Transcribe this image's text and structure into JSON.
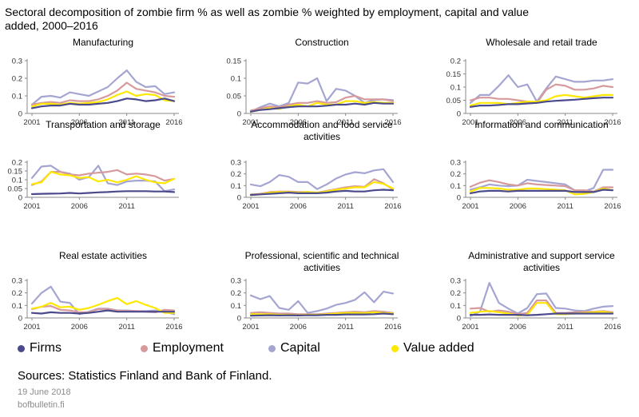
{
  "title": "Sectoral decomposition of zombie firm % as well as zombie % weighted by employment, capital and value added, 2000–2016",
  "source": "Sources: Statistics Finland and Bank of Finland.",
  "date": "19 June 2018",
  "site": "bofbulletin.fi",
  "legend": [
    {
      "name": "Firms",
      "color": "#4a4a8c"
    },
    {
      "name": "Employment",
      "color": "#d69a9c"
    },
    {
      "name": "Capital",
      "color": "#a5a5d2"
    },
    {
      "name": "Value added",
      "color": "#ffe800"
    }
  ],
  "chart_data": [
    {
      "type": "line",
      "title": [
        "Manufacturing"
      ],
      "x": [
        2001,
        2002,
        2003,
        2004,
        2005,
        2006,
        2007,
        2008,
        2009,
        2010,
        2011,
        2012,
        2013,
        2014,
        2015,
        2016
      ],
      "xticks": [
        2001,
        2006,
        2011,
        2016
      ],
      "yticks": [
        "0",
        "0.1",
        "0.2",
        "0.3"
      ],
      "ylim": [
        0,
        0.3
      ],
      "series": [
        {
          "name": "Firms",
          "values": [
            0.03,
            0.04,
            0.045,
            0.045,
            0.055,
            0.05,
            0.05,
            0.055,
            0.06,
            0.07,
            0.085,
            0.08,
            0.07,
            0.075,
            0.085,
            0.07
          ]
        },
        {
          "name": "Employment",
          "values": [
            0.05,
            0.06,
            0.065,
            0.06,
            0.075,
            0.07,
            0.07,
            0.08,
            0.1,
            0.13,
            0.175,
            0.14,
            0.13,
            0.12,
            0.1,
            0.095
          ]
        },
        {
          "name": "Capital",
          "values": [
            0.05,
            0.095,
            0.1,
            0.09,
            0.12,
            0.11,
            0.1,
            0.125,
            0.15,
            0.2,
            0.245,
            0.18,
            0.15,
            0.155,
            0.11,
            0.12
          ]
        },
        {
          "name": "Value added",
          "values": [
            0.04,
            0.055,
            0.055,
            0.05,
            0.06,
            0.055,
            0.06,
            0.065,
            0.08,
            0.105,
            0.125,
            0.1,
            0.11,
            0.105,
            0.075,
            0.07
          ]
        }
      ]
    },
    {
      "type": "line",
      "title": [
        "Construction"
      ],
      "x": [
        2001,
        2002,
        2003,
        2004,
        2005,
        2006,
        2007,
        2008,
        2009,
        2010,
        2011,
        2012,
        2013,
        2014,
        2015,
        2016
      ],
      "xticks": [
        2001,
        2006,
        2011,
        2016
      ],
      "yticks": [
        "0",
        "0.05",
        "0.1",
        "0.15"
      ],
      "ylim": [
        0,
        0.15
      ],
      "series": [
        {
          "name": "Firms",
          "values": [
            0.005,
            0.01,
            0.012,
            0.015,
            0.018,
            0.02,
            0.02,
            0.02,
            0.022,
            0.025,
            0.025,
            0.028,
            0.025,
            0.03,
            0.028,
            0.028
          ]
        },
        {
          "name": "Employment",
          "values": [
            0.008,
            0.015,
            0.02,
            0.018,
            0.025,
            0.03,
            0.03,
            0.035,
            0.03,
            0.032,
            0.045,
            0.05,
            0.04,
            0.04,
            0.04,
            0.035
          ]
        },
        {
          "name": "Capital",
          "values": [
            0.005,
            0.018,
            0.028,
            0.02,
            0.03,
            0.088,
            0.085,
            0.1,
            0.035,
            0.07,
            0.065,
            0.05,
            0.03,
            0.038,
            0.04,
            0.038
          ]
        },
        {
          "name": "Value added",
          "values": [
            0.005,
            0.01,
            0.015,
            0.013,
            0.02,
            0.025,
            0.02,
            0.03,
            0.025,
            0.025,
            0.035,
            0.035,
            0.03,
            0.032,
            0.03,
            0.03
          ]
        }
      ]
    },
    {
      "type": "line",
      "title": [
        "Wholesale and retail trade"
      ],
      "x": [
        2001,
        2002,
        2003,
        2004,
        2005,
        2006,
        2007,
        2008,
        2009,
        2010,
        2011,
        2012,
        2013,
        2014,
        2015,
        2016
      ],
      "xticks": [
        2001,
        2006,
        2011,
        2016
      ],
      "yticks": [
        "0",
        "0.05",
        "0.1",
        "0.15",
        "0.2"
      ],
      "ylim": [
        0,
        0.2
      ],
      "series": [
        {
          "name": "Firms",
          "values": [
            0.025,
            0.03,
            0.03,
            0.032,
            0.035,
            0.035,
            0.038,
            0.04,
            0.045,
            0.048,
            0.05,
            0.052,
            0.055,
            0.058,
            0.06,
            0.06
          ]
        },
        {
          "name": "Employment",
          "values": [
            0.05,
            0.06,
            0.06,
            0.055,
            0.055,
            0.05,
            0.045,
            0.04,
            0.09,
            0.11,
            0.105,
            0.09,
            0.09,
            0.095,
            0.105,
            0.1
          ]
        },
        {
          "name": "Capital",
          "values": [
            0.04,
            0.07,
            0.07,
            0.105,
            0.145,
            0.1,
            0.11,
            0.045,
            0.095,
            0.14,
            0.13,
            0.12,
            0.12,
            0.125,
            0.125,
            0.13
          ]
        },
        {
          "name": "Value added",
          "values": [
            0.03,
            0.04,
            0.04,
            0.04,
            0.035,
            0.04,
            0.045,
            0.045,
            0.05,
            0.065,
            0.07,
            0.065,
            0.06,
            0.065,
            0.07,
            0.07
          ]
        }
      ]
    },
    {
      "type": "line",
      "title": [
        "Transportation and storage"
      ],
      "x": [
        2001,
        2002,
        2003,
        2004,
        2005,
        2006,
        2007,
        2008,
        2009,
        2010,
        2011,
        2012,
        2013,
        2014,
        2015,
        2016
      ],
      "xticks": [
        2001,
        2006,
        2011
      ],
      "yticks": [
        "0",
        "0.05",
        "0.1",
        "0.15",
        "0.2"
      ],
      "ylim": [
        0,
        0.2
      ],
      "series": [
        {
          "name": "Firms",
          "values": [
            0.018,
            0.02,
            0.021,
            0.022,
            0.025,
            0.022,
            0.025,
            0.028,
            0.03,
            0.033,
            0.035,
            0.035,
            0.035,
            0.033,
            0.033,
            0.03
          ]
        },
        {
          "name": "Employment",
          "values": [
            0.07,
            0.09,
            0.145,
            0.145,
            0.13,
            0.125,
            0.135,
            0.14,
            0.145,
            0.155,
            0.13,
            0.135,
            0.13,
            0.12,
            0.095,
            0.105
          ]
        },
        {
          "name": "Capital",
          "values": [
            0.11,
            0.175,
            0.18,
            0.145,
            0.135,
            0.1,
            0.115,
            0.18,
            0.08,
            0.07,
            0.09,
            0.095,
            0.095,
            0.09,
            0.035,
            0.045
          ]
        },
        {
          "name": "Value added",
          "values": [
            0.075,
            0.085,
            0.145,
            0.13,
            0.125,
            0.11,
            0.115,
            0.09,
            0.1,
            0.085,
            0.1,
            0.12,
            0.1,
            0.085,
            0.08,
            0.105
          ]
        }
      ]
    },
    {
      "type": "line",
      "title": [
        "Accommodation and food service",
        "activities"
      ],
      "x": [
        2001,
        2002,
        2003,
        2004,
        2005,
        2006,
        2007,
        2008,
        2009,
        2010,
        2011,
        2012,
        2013,
        2014,
        2015,
        2016
      ],
      "xticks": [
        2001,
        2006,
        2011,
        2016
      ],
      "yticks": [
        "0",
        "0.1",
        "0.2",
        "0.3"
      ],
      "ylim": [
        0,
        0.3
      ],
      "series": [
        {
          "name": "Firms",
          "values": [
            0.02,
            0.025,
            0.03,
            0.035,
            0.04,
            0.035,
            0.035,
            0.035,
            0.04,
            0.05,
            0.055,
            0.05,
            0.05,
            0.06,
            0.065,
            0.06
          ]
        },
        {
          "name": "Employment",
          "values": [
            0.025,
            0.03,
            0.045,
            0.05,
            0.05,
            0.045,
            0.045,
            0.04,
            0.055,
            0.07,
            0.085,
            0.095,
            0.09,
            0.155,
            0.12,
            0.065
          ]
        },
        {
          "name": "Capital",
          "values": [
            0.11,
            0.095,
            0.13,
            0.19,
            0.175,
            0.13,
            0.13,
            0.07,
            0.11,
            0.16,
            0.195,
            0.215,
            0.205,
            0.23,
            0.24,
            0.13
          ]
        },
        {
          "name": "Value added",
          "values": [
            0.02,
            0.025,
            0.04,
            0.045,
            0.045,
            0.04,
            0.045,
            0.04,
            0.05,
            0.065,
            0.075,
            0.085,
            0.085,
            0.13,
            0.115,
            0.075
          ]
        }
      ]
    },
    {
      "type": "line",
      "title": [
        "Information and communication"
      ],
      "x": [
        2001,
        2002,
        2003,
        2004,
        2005,
        2006,
        2007,
        2008,
        2009,
        2010,
        2011,
        2012,
        2013,
        2014,
        2015,
        2016
      ],
      "xticks": [
        2001,
        2006,
        2011,
        2016
      ],
      "yticks": [
        "0",
        "0.1",
        "0.2",
        "0.3"
      ],
      "ylim": [
        0,
        0.3
      ],
      "series": [
        {
          "name": "Firms",
          "values": [
            0.035,
            0.05,
            0.055,
            0.055,
            0.05,
            0.055,
            0.055,
            0.055,
            0.055,
            0.055,
            0.055,
            0.045,
            0.045,
            0.045,
            0.065,
            0.06
          ]
        },
        {
          "name": "Employment",
          "values": [
            0.09,
            0.125,
            0.145,
            0.13,
            0.11,
            0.1,
            0.12,
            0.11,
            0.105,
            0.1,
            0.095,
            0.06,
            0.06,
            0.05,
            0.085,
            0.085
          ]
        },
        {
          "name": "Capital",
          "values": [
            0.065,
            0.085,
            0.11,
            0.1,
            0.095,
            0.1,
            0.15,
            0.14,
            0.13,
            0.12,
            0.11,
            0.06,
            0.05,
            0.08,
            0.235,
            0.235
          ]
        },
        {
          "name": "Value added",
          "values": [
            0.05,
            0.08,
            0.08,
            0.075,
            0.065,
            0.065,
            0.075,
            0.075,
            0.07,
            0.065,
            0.06,
            0.025,
            0.03,
            0.045,
            0.075,
            0.06
          ]
        }
      ]
    },
    {
      "type": "line",
      "title": [
        "Real estate activities"
      ],
      "x": [
        2001,
        2002,
        2003,
        2004,
        2005,
        2006,
        2007,
        2008,
        2009,
        2010,
        2011,
        2012,
        2013,
        2014,
        2015,
        2016
      ],
      "xticks": [
        2001,
        2006,
        2011,
        2016
      ],
      "yticks": [
        "0",
        "0.1",
        "0.2",
        "0.3"
      ],
      "ylim": [
        0,
        0.3
      ],
      "series": [
        {
          "name": "Firms",
          "values": [
            0.04,
            0.035,
            0.045,
            0.04,
            0.04,
            0.035,
            0.04,
            0.05,
            0.06,
            0.05,
            0.05,
            0.05,
            0.05,
            0.05,
            0.05,
            0.05
          ]
        },
        {
          "name": "Employment",
          "values": [
            0.07,
            0.09,
            0.095,
            0.065,
            0.06,
            0.045,
            0.045,
            0.07,
            0.07,
            0.06,
            0.055,
            0.055,
            0.05,
            0.045,
            0.065,
            0.06
          ]
        },
        {
          "name": "Capital",
          "values": [
            0.115,
            0.2,
            0.25,
            0.13,
            0.12,
            0.03,
            0.05,
            0.075,
            0.075,
            0.06,
            0.06,
            0.055,
            0.055,
            0.06,
            0.05,
            0.03
          ]
        },
        {
          "name": "Value added",
          "values": [
            0.075,
            0.09,
            0.12,
            0.085,
            0.09,
            0.065,
            0.08,
            0.105,
            0.135,
            0.16,
            0.11,
            0.135,
            0.105,
            0.08,
            0.04,
            0.04
          ]
        }
      ]
    },
    {
      "type": "line",
      "title": [
        "Professional, scientific and technical",
        "activities"
      ],
      "x": [
        2001,
        2002,
        2003,
        2004,
        2005,
        2006,
        2007,
        2008,
        2009,
        2010,
        2011,
        2012,
        2013,
        2014,
        2015,
        2016
      ],
      "xticks": [
        2001,
        2006,
        2011,
        2016
      ],
      "yticks": [
        "0",
        "0.1",
        "0.2",
        "0.3"
      ],
      "ylim": [
        0,
        0.3
      ],
      "series": [
        {
          "name": "Firms",
          "values": [
            0.018,
            0.02,
            0.022,
            0.02,
            0.022,
            0.02,
            0.022,
            0.022,
            0.025,
            0.025,
            0.028,
            0.028,
            0.028,
            0.03,
            0.035,
            0.03
          ]
        },
        {
          "name": "Employment",
          "values": [
            0.04,
            0.045,
            0.04,
            0.035,
            0.035,
            0.03,
            0.03,
            0.03,
            0.035,
            0.04,
            0.045,
            0.05,
            0.045,
            0.055,
            0.05,
            0.04
          ]
        },
        {
          "name": "Capital",
          "values": [
            0.18,
            0.15,
            0.175,
            0.08,
            0.065,
            0.135,
            0.04,
            0.055,
            0.075,
            0.105,
            0.12,
            0.145,
            0.205,
            0.125,
            0.21,
            0.195
          ]
        },
        {
          "name": "Value added",
          "values": [
            0.03,
            0.03,
            0.03,
            0.025,
            0.025,
            0.022,
            0.025,
            0.025,
            0.03,
            0.035,
            0.04,
            0.04,
            0.038,
            0.045,
            0.04,
            0.035
          ]
        }
      ]
    },
    {
      "type": "line",
      "title": [
        "Administrative and support service",
        "activities"
      ],
      "x": [
        2001,
        2002,
        2003,
        2004,
        2005,
        2006,
        2007,
        2008,
        2009,
        2010,
        2011,
        2012,
        2013,
        2014,
        2015,
        2016
      ],
      "xticks": [
        2001,
        2006,
        2011,
        2016
      ],
      "yticks": [
        "0",
        "0.1",
        "0.2",
        "0.3"
      ],
      "ylim": [
        0,
        0.3
      ],
      "series": [
        {
          "name": "Firms",
          "values": [
            0.025,
            0.025,
            0.028,
            0.025,
            0.025,
            0.025,
            0.022,
            0.025,
            0.03,
            0.035,
            0.035,
            0.035,
            0.035,
            0.035,
            0.035,
            0.035
          ]
        },
        {
          "name": "Employment",
          "values": [
            0.075,
            0.08,
            0.05,
            0.06,
            0.05,
            0.03,
            0.04,
            0.14,
            0.14,
            0.04,
            0.04,
            0.045,
            0.05,
            0.05,
            0.055,
            0.045
          ]
        },
        {
          "name": "Capital",
          "values": [
            0.015,
            0.05,
            0.28,
            0.12,
            0.075,
            0.035,
            0.08,
            0.19,
            0.195,
            0.08,
            0.075,
            0.06,
            0.055,
            0.075,
            0.09,
            0.095
          ]
        },
        {
          "name": "Value added",
          "values": [
            0.04,
            0.05,
            0.055,
            0.045,
            0.035,
            0.02,
            0.025,
            0.12,
            0.12,
            0.03,
            0.03,
            0.035,
            0.04,
            0.045,
            0.05,
            0.04
          ]
        }
      ]
    }
  ]
}
